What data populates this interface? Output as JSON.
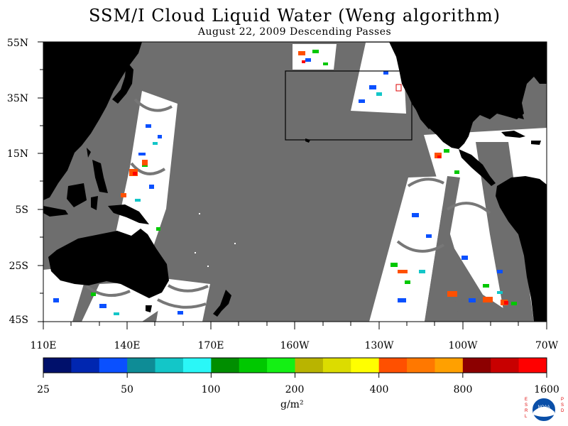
{
  "title": "SSM/I Cloud Liquid Water (Weng algorithm)",
  "subtitle": "August 22, 2009  Descending Passes",
  "lat_labels": [
    "55N",
    "35N",
    "15N",
    "5S",
    "25S",
    "45S"
  ],
  "lon_labels": [
    "110E",
    "140E",
    "170E",
    "160W",
    "130W",
    "100W",
    "70W"
  ],
  "colorbar": {
    "labels": [
      "25",
      "50",
      "100",
      "200",
      "400",
      "800",
      "1600"
    ],
    "units": "g/m²",
    "colors": [
      "#00106b",
      "#0026b0",
      "#0a50ff",
      "#0e8c96",
      "#13c6c8",
      "#2af7f7",
      "#008e00",
      "#00c800",
      "#14f014",
      "#b9b400",
      "#dcdc00",
      "#ffff00",
      "#ff5000",
      "#ff7800",
      "#ffa000",
      "#8c0000",
      "#c80000",
      "#ff0000"
    ]
  },
  "map_colors": {
    "land": "#000000",
    "no_data": "#6e6e6e",
    "swath": "#ffffff"
  },
  "logo": {
    "left_text": "ESRL",
    "right_text": "PSD",
    "center_text": "NOAA"
  }
}
